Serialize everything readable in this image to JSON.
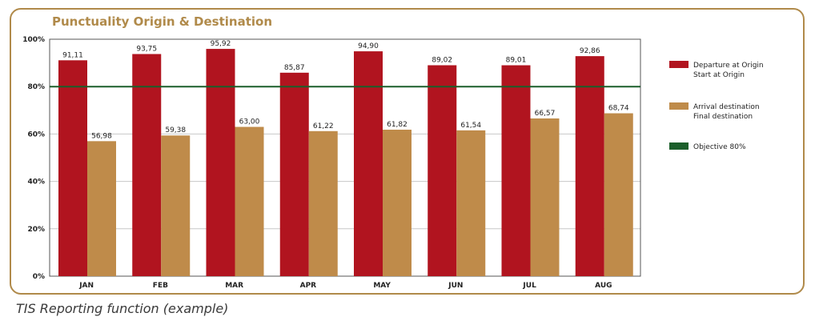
{
  "caption": "TIS Reporting function (example)",
  "colors": {
    "departure": "#b1141f",
    "arrival": "#bf8b4a",
    "objective": "#1b5e2a",
    "frame": "#b08a4a"
  },
  "chart_data": {
    "type": "bar",
    "title": "Punctuality Origin & Destination",
    "categories": [
      "JAN",
      "FEB",
      "MAR",
      "APR",
      "MAY",
      "JUN",
      "JUL",
      "AUG"
    ],
    "series": [
      {
        "name": "Departure at Origin",
        "name_line2": "Start at Origin",
        "values": [
          91.11,
          93.75,
          95.92,
          85.87,
          94.9,
          89.02,
          89.01,
          92.86
        ],
        "labels": [
          "91,11",
          "93,75",
          "95,92",
          "85,87",
          "94,90",
          "89,02",
          "89,01",
          "92,86"
        ]
      },
      {
        "name": "Arrival destination",
        "name_line2": "Final destination",
        "values": [
          56.98,
          59.38,
          63.0,
          61.22,
          61.82,
          61.54,
          66.57,
          68.74
        ],
        "labels": [
          "56,98",
          "59,38",
          "63,00",
          "61,22",
          "61,82",
          "61,54",
          "66,57",
          "68,74"
        ]
      }
    ],
    "objective": {
      "name": "Objective 80%",
      "value": 80
    },
    "ylim": [
      0,
      100
    ],
    "yticks": [
      0,
      20,
      40,
      60,
      80,
      100
    ],
    "ytick_labels": [
      "0%",
      "20%",
      "40%",
      "60%",
      "80%",
      "100%"
    ],
    "xlabel": "",
    "ylabel": "",
    "grid": true,
    "legend_position": "right"
  }
}
